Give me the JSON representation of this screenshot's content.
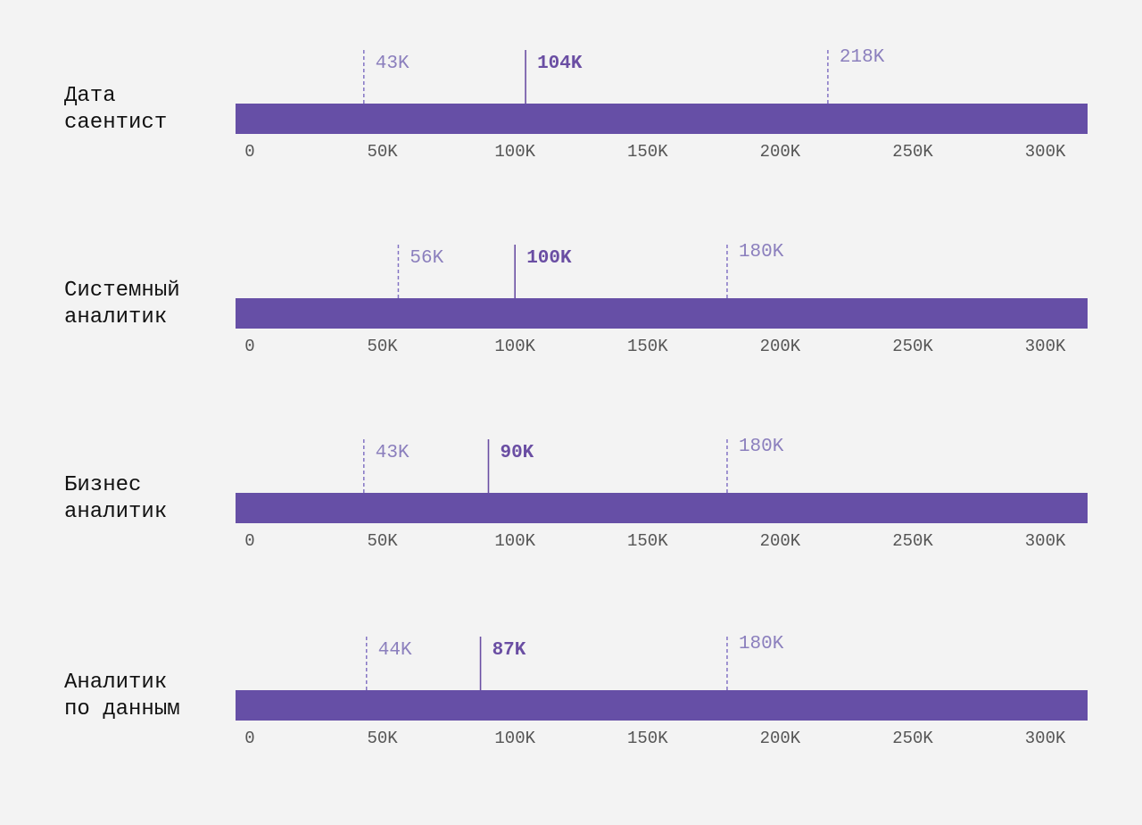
{
  "chart_data": {
    "type": "range-bar",
    "colors": {
      "bar": "#664fa6",
      "marker": "#8474c4",
      "median_text": "#6a4ea3",
      "range_text": "#8b7fbd"
    },
    "axis": {
      "ticks": [
        0,
        50000,
        100000,
        150000,
        200000,
        250000,
        300000
      ],
      "tick_labels": [
        "0",
        "50K",
        "100K",
        "150K",
        "200K",
        "250K",
        "300K"
      ]
    },
    "rows": [
      {
        "label_lines": [
          "Дата",
          "саентист"
        ],
        "low": 43000,
        "median": 104000,
        "high": 218000,
        "low_label": "43K",
        "median_label": "104K",
        "high_label": "218K"
      },
      {
        "label_lines": [
          "Системный",
          "аналитик"
        ],
        "low": 56000,
        "median": 100000,
        "high": 180000,
        "low_label": "56K",
        "median_label": "100K",
        "high_label": "180K"
      },
      {
        "label_lines": [
          "Бизнес",
          "аналитик"
        ],
        "low": 43000,
        "median": 90000,
        "high": 180000,
        "low_label": "43K",
        "median_label": "90K",
        "high_label": "180K"
      },
      {
        "label_lines": [
          "Аналитик",
          "по данным"
        ],
        "low": 44000,
        "median": 87000,
        "high": 180000,
        "low_label": "44K",
        "median_label": "87K",
        "high_label": "180K"
      }
    ]
  }
}
